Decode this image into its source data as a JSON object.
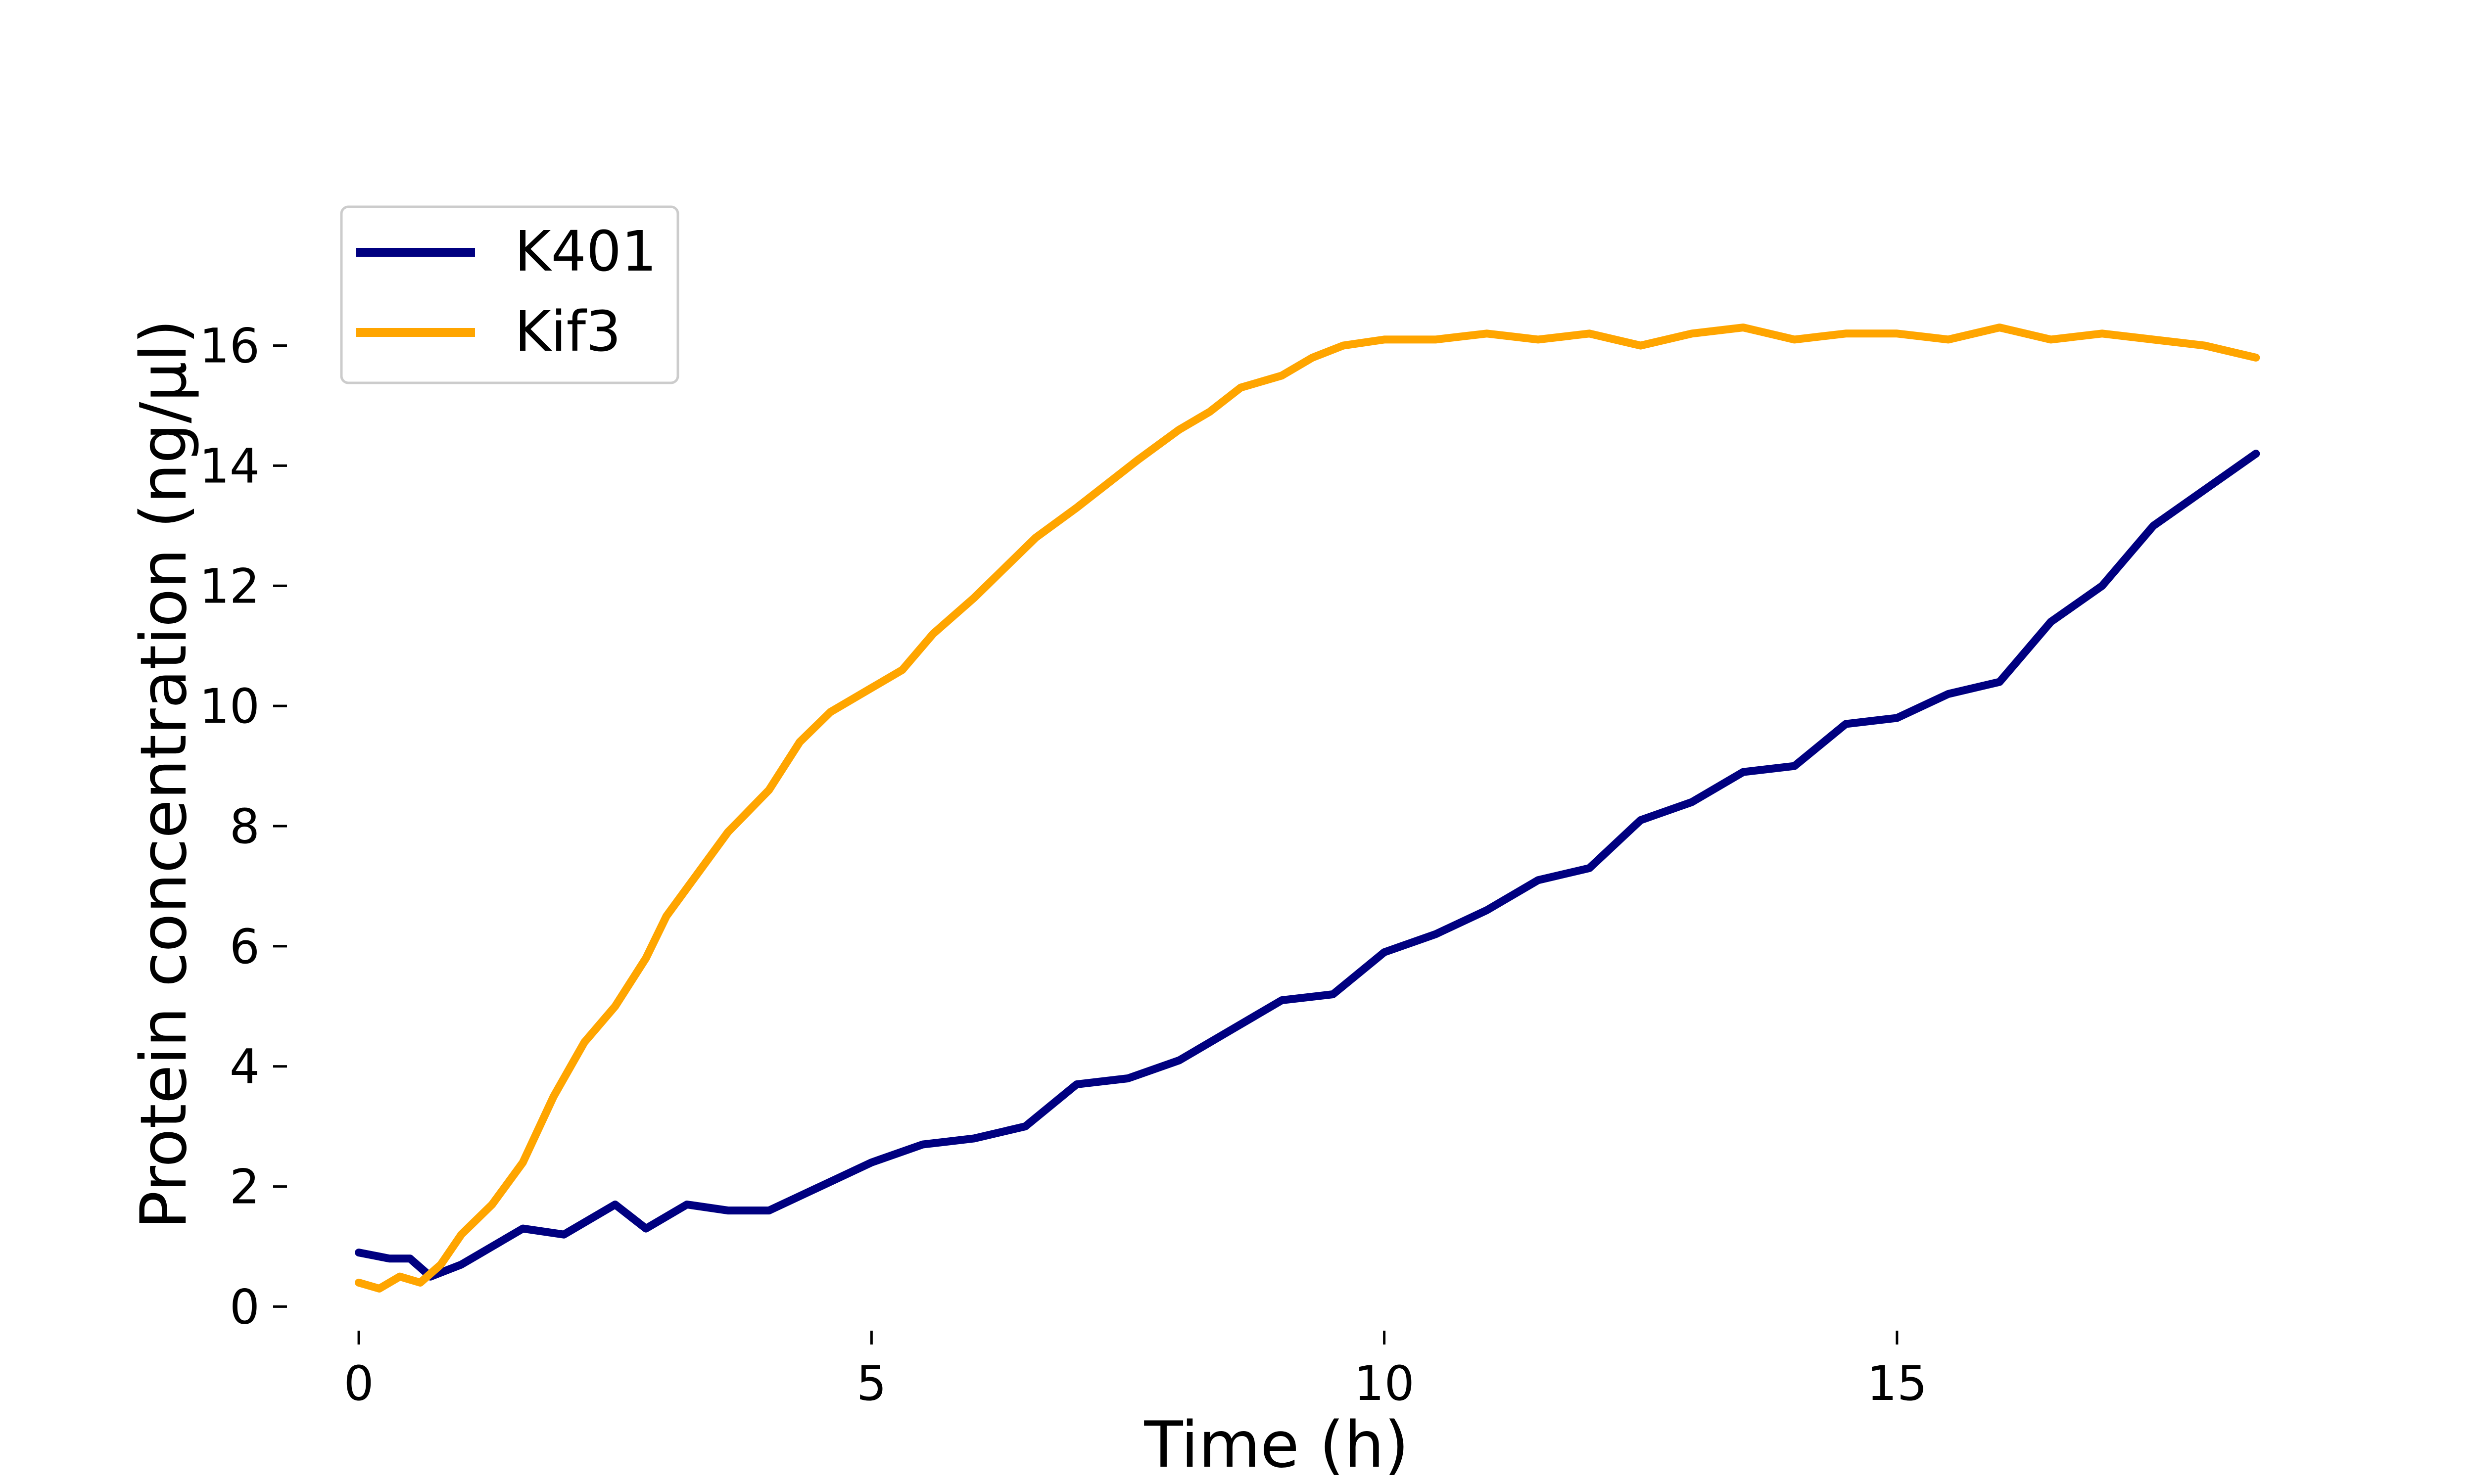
{
  "chart_data": {
    "type": "line",
    "title": "",
    "xlabel": "Time (h)",
    "ylabel": "Protein concentration (ng/µl)",
    "xlim": [
      -0.7,
      18.6
    ],
    "ylim": [
      -0.4,
      17.8
    ],
    "x_ticks": [
      0,
      5,
      10,
      15
    ],
    "y_ticks": [
      0,
      2,
      4,
      6,
      8,
      10,
      12,
      14,
      16
    ],
    "grid": false,
    "legend_position": "top-left",
    "series": [
      {
        "name": "K401",
        "color": "#000080",
        "x": [
          0,
          0.3,
          0.5,
          0.7,
          1.0,
          1.3,
          1.6,
          2.0,
          2.5,
          2.8,
          3.2,
          3.6,
          4.0,
          4.5,
          5.0,
          5.5,
          6.0,
          6.5,
          7.0,
          7.5,
          8.0,
          8.5,
          9.0,
          9.5,
          10.0,
          10.5,
          11.0,
          11.5,
          12.0,
          12.5,
          13.0,
          13.5,
          14.0,
          14.5,
          15.0,
          15.5,
          16.0,
          16.5,
          17.0,
          17.5,
          18.0,
          18.5
        ],
        "y": [
          0.9,
          0.8,
          0.8,
          0.5,
          0.7,
          1.0,
          1.3,
          1.2,
          1.7,
          1.3,
          1.7,
          1.6,
          1.6,
          2.0,
          2.4,
          2.7,
          2.8,
          3.0,
          3.7,
          3.8,
          4.1,
          4.6,
          5.1,
          5.2,
          5.9,
          6.2,
          6.6,
          7.1,
          7.3,
          8.1,
          8.4,
          8.9,
          9.0,
          9.7,
          9.8,
          10.2,
          10.4,
          11.4,
          12.0,
          13.0,
          13.6,
          14.2
        ]
      },
      {
        "name": "Kif3",
        "color": "#FFA500",
        "x": [
          0,
          0.2,
          0.4,
          0.6,
          0.8,
          1.0,
          1.3,
          1.6,
          1.9,
          2.2,
          2.5,
          2.8,
          3.0,
          3.3,
          3.6,
          4.0,
          4.3,
          4.6,
          5.0,
          5.3,
          5.6,
          6.0,
          6.3,
          6.6,
          7.0,
          7.3,
          7.6,
          8.0,
          8.3,
          8.6,
          9.0,
          9.3,
          9.6,
          10.0,
          10.5,
          11.0,
          11.5,
          12.0,
          12.5,
          13.0,
          13.5,
          14.0,
          14.5,
          15.0,
          15.5,
          16.0,
          16.5,
          17.0,
          17.5,
          18.0,
          18.5
        ],
        "y": [
          0.4,
          0.3,
          0.5,
          0.4,
          0.7,
          1.2,
          1.7,
          2.4,
          3.5,
          4.4,
          5.0,
          5.8,
          6.5,
          7.2,
          7.9,
          8.6,
          9.4,
          9.9,
          10.3,
          10.6,
          11.2,
          11.8,
          12.3,
          12.8,
          13.3,
          13.7,
          14.1,
          14.6,
          14.9,
          15.3,
          15.5,
          15.8,
          16.0,
          16.1,
          16.1,
          16.2,
          16.1,
          16.2,
          16.0,
          16.2,
          16.3,
          16.1,
          16.2,
          16.2,
          16.1,
          16.3,
          16.1,
          16.2,
          16.1,
          16.0,
          15.8
        ]
      }
    ]
  }
}
